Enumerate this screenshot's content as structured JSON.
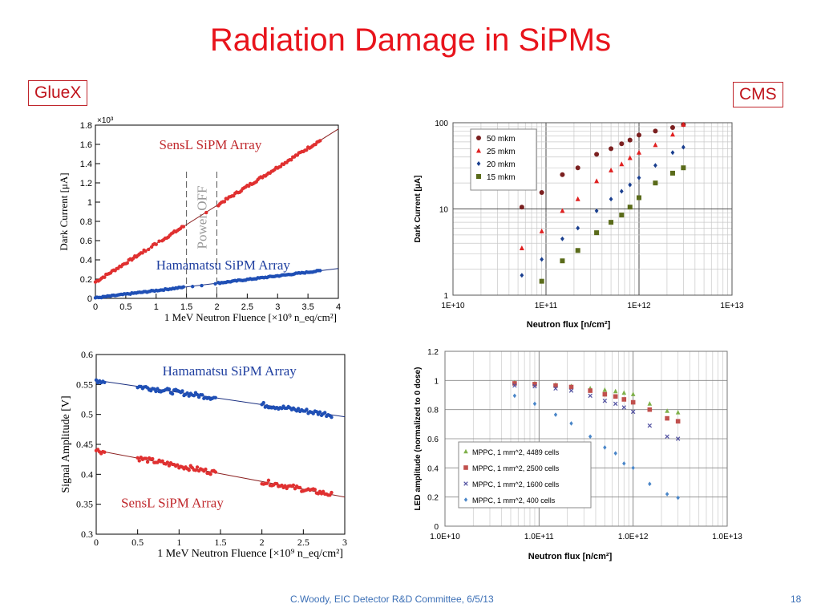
{
  "slide": {
    "title": "Radiation Damage in SiPMs",
    "left_label": "GlueX",
    "right_label": "CMS",
    "footer": "C.Woody, EIC Detector R&D Committee,  6/5/13",
    "page_number": "18"
  },
  "colors": {
    "title": "#e8141c",
    "footer": "#3b6fb6",
    "red_series": "#e03030",
    "blue_series": "#1f4fb5"
  },
  "chart_data": [
    {
      "type": "scatter",
      "id": "gluex_dark_current",
      "xlabel": "1 MeV Neutron Fluence [×10⁹ n_eq/cm²]",
      "ylabel": "Dark Current [μA]",
      "y_multiplier": "×10³",
      "xlim": [
        0,
        4
      ],
      "ylim": [
        0,
        1800
      ],
      "xticks": [
        "0",
        "0.5",
        "1",
        "1.5",
        "2",
        "2.5",
        "3",
        "3.5",
        "4"
      ],
      "yticks": [
        "0",
        "0.2",
        "0.4",
        "0.6",
        "0.8",
        "1",
        "1.2",
        "1.4",
        "1.6",
        "1.8"
      ],
      "annotation": "Power OFF",
      "power_off_range": [
        1.5,
        2.0
      ],
      "series": [
        {
          "name": "SensL SiPM Array",
          "fit": [
            [
              0,
              170
            ],
            [
              4,
              1760
            ]
          ],
          "x_range": [
            0,
            3.7
          ]
        },
        {
          "name": "Hamamatsu SiPM Array",
          "fit": [
            [
              0,
              5
            ],
            [
              4,
              310
            ]
          ],
          "x_range": [
            0,
            3.7
          ]
        }
      ]
    },
    {
      "type": "scatter",
      "id": "gluex_signal_amplitude",
      "xlabel": "1 MeV Neutron Fluence [×10⁹ n_eq/cm²]",
      "ylabel": "Signal Amplitude [V]",
      "xlim": [
        0,
        3
      ],
      "ylim": [
        0.3,
        0.6
      ],
      "xticks": [
        "0",
        "0.5",
        "1",
        "1.5",
        "2",
        "2.5",
        "3"
      ],
      "yticks": [
        "0.3",
        "0.35",
        "0.4",
        "0.45",
        "0.5",
        "0.55",
        "0.6"
      ],
      "series": [
        {
          "name": "Hamamatsu SiPM Array",
          "fit": [
            [
              0,
              0.557
            ],
            [
              3,
              0.496
            ]
          ],
          "x_segments": [
            [
              0,
              0.1
            ],
            [
              0.5,
              1.45
            ],
            [
              2.0,
              2.85
            ]
          ]
        },
        {
          "name": "SensL SiPM Array",
          "fit": [
            [
              0,
              0.44
            ],
            [
              3,
              0.362
            ]
          ],
          "x_segments": [
            [
              0,
              0.1
            ],
            [
              0.5,
              1.45
            ],
            [
              2.0,
              2.85
            ]
          ]
        }
      ]
    },
    {
      "type": "scatter",
      "id": "cms_dark_current",
      "xlabel": "Neutron flux [n/cm²]",
      "ylabel": "Dark Current [μA]",
      "x_scale": "log",
      "y_scale": "log",
      "xlim": [
        10000000000.0,
        10000000000000.0
      ],
      "ylim": [
        1,
        100
      ],
      "xticks": [
        "1E+10",
        "1E+11",
        "1E+12",
        "1E+13"
      ],
      "yticks": [
        "1",
        "10",
        "100"
      ],
      "legend_position": "top-left",
      "x": [
        55000000000.0,
        90000000000.0,
        150000000000.0,
        220000000000.0,
        350000000000.0,
        500000000000.0,
        650000000000.0,
        800000000000.0,
        1000000000000.0,
        1500000000000.0,
        2300000000000.0,
        3000000000000.0
      ],
      "series": [
        {
          "name": "50 mkm",
          "marker": "circle",
          "color": "#7b2020",
          "values": [
            10.5,
            15.5,
            25,
            30,
            43,
            50,
            57,
            63,
            72,
            80,
            88,
            95
          ]
        },
        {
          "name": "25 mkm",
          "marker": "triangle",
          "color": "#e02020",
          "values": [
            3.5,
            5.5,
            9.5,
            13,
            21,
            28,
            33,
            39,
            45,
            55,
            73,
            95
          ]
        },
        {
          "name": "20 mkm",
          "marker": "diamond",
          "color": "#1a3f8f",
          "values": [
            1.7,
            2.6,
            4.5,
            6,
            9.5,
            13,
            16,
            19,
            23,
            32,
            45,
            52
          ]
        },
        {
          "name": "15 mkm",
          "marker": "square",
          "color": "#5a6b1a",
          "values": [
            null,
            1.45,
            2.5,
            3.3,
            5.3,
            7,
            8.5,
            10.5,
            13.5,
            20,
            26,
            30
          ]
        }
      ]
    },
    {
      "type": "scatter",
      "id": "cms_led_amplitude",
      "xlabel": "Neutron flux [n/cm²]",
      "ylabel": "LED amplitude (normalized to 0 dose)",
      "x_scale": "log",
      "xlim": [
        10000000000.0,
        10000000000000.0
      ],
      "ylim": [
        0,
        1.2
      ],
      "xticks": [
        "1.0E+10",
        "1.0E+11",
        "1.0E+12",
        "1.0E+13"
      ],
      "yticks": [
        "0",
        "0.2",
        "0.4",
        "0.6",
        "0.8",
        "1",
        "1.2"
      ],
      "legend_position": "bottom-left",
      "x": [
        55000000000.0,
        90000000000.0,
        150000000000.0,
        220000000000.0,
        350000000000.0,
        500000000000.0,
        650000000000.0,
        800000000000.0,
        1000000000000.0,
        1500000000000.0,
        2300000000000.0,
        3000000000000.0
      ],
      "series": [
        {
          "name": "MPPC, 1 mm^2, 4489 cells",
          "marker": "triangle",
          "color": "#7fb04a",
          "values": [
            0.985,
            0.978,
            0.97,
            0.96,
            0.945,
            0.935,
            0.925,
            0.915,
            0.905,
            0.84,
            0.79,
            0.78
          ]
        },
        {
          "name": "MPPC, 1 mm^2, 2500 cells",
          "marker": "square",
          "color": "#c0504d",
          "values": [
            0.98,
            0.975,
            0.965,
            0.955,
            0.93,
            0.905,
            0.89,
            0.87,
            0.85,
            0.8,
            0.74,
            0.72
          ]
        },
        {
          "name": "MPPC, 1 mm^2, 1600 cells",
          "marker": "x",
          "color": "#5050a0",
          "values": [
            0.965,
            0.96,
            0.945,
            0.93,
            0.895,
            0.86,
            0.84,
            0.815,
            0.785,
            0.69,
            0.615,
            0.6
          ]
        },
        {
          "name": "MPPC, 1 mm^2, 400 cells",
          "marker": "diamond",
          "color": "#4a86c8",
          "values": [
            0.895,
            0.84,
            0.765,
            0.705,
            0.615,
            0.54,
            0.5,
            0.43,
            0.4,
            0.29,
            0.22,
            0.195
          ]
        }
      ]
    }
  ]
}
